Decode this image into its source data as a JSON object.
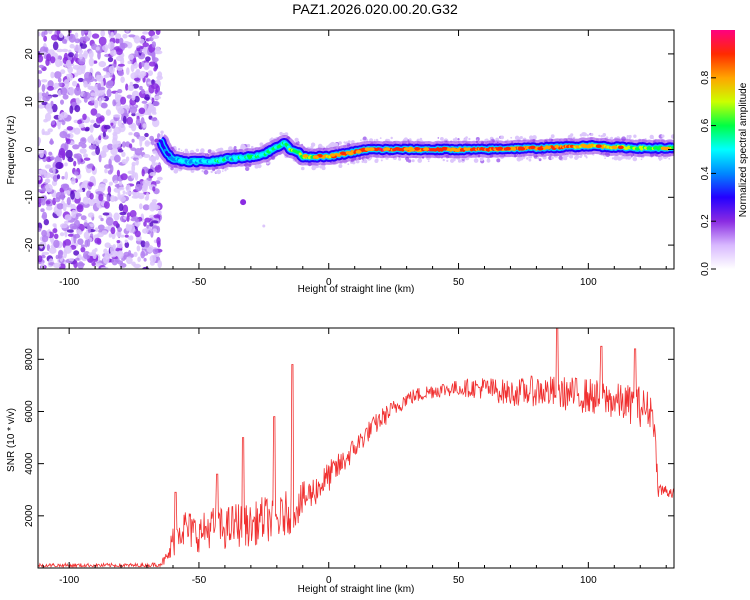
{
  "title": "PAZ1.2026.020.00.20.G32",
  "chart_data": [
    {
      "type": "heatmap",
      "xlabel": "Height of straight line (km)",
      "ylabel": "Frequency (Hz)",
      "xlim": [
        -112,
        133
      ],
      "ylim": [
        -25,
        25
      ],
      "xticks": [
        -100,
        -50,
        0,
        50,
        100
      ],
      "yticks": [
        -20,
        -10,
        0,
        10,
        20
      ],
      "colorbar": {
        "label": "Normalized spectral amplitude",
        "range": [
          0,
          1
        ],
        "ticks": [
          "0.0",
          "0.2",
          "0.4",
          "0.6",
          "0.8"
        ],
        "colormap": [
          "#ffffff",
          "#d8b8ff",
          "#8a2be2",
          "#2400ff",
          "#0088ff",
          "#00ffff",
          "#00ff44",
          "#ccff00",
          "#ffa500",
          "#ff2a00",
          "#ff0080"
        ]
      },
      "noise_region_x": [
        -112,
        -65
      ],
      "ridge": {
        "x": [
          -65,
          -62,
          -60,
          -55,
          -50,
          -45,
          -40,
          -35,
          -30,
          -25,
          -20,
          -17,
          -15,
          -12,
          -10,
          -5,
          0,
          5,
          10,
          15,
          20,
          30,
          40,
          50,
          60,
          70,
          80,
          90,
          100,
          110,
          120,
          133
        ],
        "freq_hz": [
          2,
          -1,
          -2,
          -2.5,
          -2.5,
          -2.5,
          -2,
          -1.8,
          -1.5,
          -1,
          0.5,
          1.5,
          0,
          -0.5,
          -1.5,
          -1.5,
          -1.5,
          -1,
          -0.5,
          0,
          0,
          0,
          0,
          0,
          0,
          0.2,
          0.3,
          0.5,
          0.8,
          0.5,
          0.3,
          0.3
        ],
        "amplitude": [
          0.25,
          0.35,
          0.4,
          0.45,
          0.45,
          0.5,
          0.5,
          0.5,
          0.55,
          0.55,
          0.55,
          0.6,
          0.6,
          0.6,
          0.65,
          0.7,
          0.75,
          0.8,
          0.85,
          0.9,
          0.9,
          0.9,
          0.9,
          0.9,
          0.85,
          0.85,
          0.85,
          0.85,
          0.75,
          0.7,
          0.65,
          0.6
        ]
      }
    },
    {
      "type": "line",
      "xlabel": "Height of straight line (km)",
      "ylabel": "SNR (10 * v/v)",
      "xlim": [
        -112,
        133
      ],
      "ylim": [
        0,
        9200
      ],
      "xticks": [
        -100,
        -50,
        0,
        50,
        100
      ],
      "yticks": [
        2000,
        4000,
        6000,
        8000
      ],
      "color": "#f03030",
      "envelope": {
        "x": [
          -112,
          -70,
          -65,
          -62,
          -60,
          -58,
          -55,
          -50,
          -45,
          -40,
          -35,
          -30,
          -25,
          -20,
          -15,
          -10,
          -5,
          0,
          5,
          10,
          15,
          20,
          25,
          30,
          40,
          50,
          60,
          70,
          80,
          90,
          100,
          110,
          120,
          125,
          127,
          133
        ],
        "value": [
          100,
          100,
          150,
          400,
          1000,
          1600,
          1500,
          1300,
          1600,
          1500,
          1700,
          1600,
          1900,
          1800,
          2200,
          2600,
          3000,
          3500,
          4000,
          4600,
          5200,
          5700,
          6100,
          6500,
          6800,
          6900,
          6900,
          6700,
          6800,
          6700,
          6600,
          6400,
          6200,
          6000,
          3000,
          2900
        ],
        "noise": [
          80,
          80,
          100,
          300,
          700,
          800,
          800,
          700,
          800,
          800,
          900,
          800,
          900,
          800,
          900,
          700,
          600,
          600,
          500,
          450,
          400,
          400,
          350,
          300,
          300,
          300,
          450,
          500,
          600,
          650,
          700,
          700,
          800,
          700,
          300,
          250
        ]
      },
      "spikes": [
        {
          "x": -59,
          "value": 2900
        },
        {
          "x": -43,
          "value": 3600
        },
        {
          "x": -33,
          "value": 5000
        },
        {
          "x": -21,
          "value": 5800
        },
        {
          "x": -14,
          "value": 7800
        },
        {
          "x": 88,
          "value": 9200
        },
        {
          "x": 105,
          "value": 8500
        },
        {
          "x": 118,
          "value": 8400
        }
      ]
    }
  ]
}
